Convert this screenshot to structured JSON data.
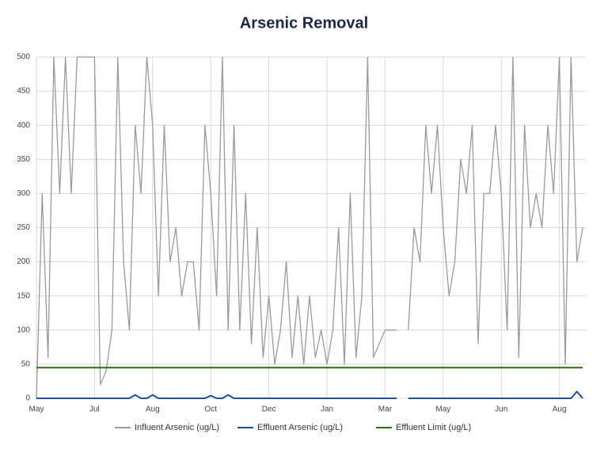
{
  "chart_data": {
    "type": "line",
    "title": "Arsenic Removal",
    "categories": [
      "May",
      null,
      null,
      null,
      null,
      null,
      null,
      null,
      null,
      null,
      "Jul",
      null,
      null,
      null,
      null,
      null,
      null,
      null,
      null,
      null,
      "Aug",
      null,
      null,
      null,
      null,
      null,
      null,
      null,
      null,
      null,
      "Oct",
      null,
      null,
      null,
      null,
      null,
      null,
      null,
      null,
      null,
      "Dec",
      null,
      null,
      null,
      null,
      null,
      null,
      null,
      null,
      null,
      "Jan",
      null,
      null,
      null,
      null,
      null,
      null,
      null,
      null,
      null,
      "Mar",
      null,
      null,
      null,
      null,
      null,
      null,
      null,
      null,
      null,
      "May",
      null,
      null,
      null,
      null,
      null,
      null,
      null,
      null,
      null,
      "Jun",
      null,
      null,
      null,
      null,
      null,
      null,
      null,
      null,
      null,
      "Aug",
      null,
      null,
      null,
      null
    ],
    "series": [
      {
        "name": "Influent Arsenic (ug/L)",
        "color": "#9a9a9a",
        "values": [
          0,
          300,
          60,
          500,
          300,
          500,
          300,
          500,
          500,
          500,
          500,
          20,
          40,
          100,
          500,
          200,
          100,
          400,
          300,
          500,
          400,
          150,
          400,
          200,
          250,
          150,
          200,
          200,
          100,
          400,
          300,
          150,
          500,
          100,
          400,
          100,
          300,
          80,
          250,
          60,
          150,
          50,
          100,
          200,
          60,
          150,
          50,
          150,
          60,
          100,
          50,
          100,
          250,
          50,
          300,
          60,
          150,
          500,
          60,
          80,
          100,
          100,
          100,
          null,
          100,
          250,
          200,
          400,
          300,
          400,
          250,
          150,
          200,
          350,
          300,
          400,
          80,
          300,
          300,
          400,
          300,
          100,
          500,
          60,
          400,
          250,
          300,
          250,
          400,
          300,
          500,
          50,
          500,
          200,
          250
        ]
      },
      {
        "name": "Effluent Arsenic (ug/L)",
        "color": "#1f4ea0",
        "values": [
          0,
          0,
          0,
          0,
          0,
          0,
          0,
          0,
          0,
          0,
          0,
          0,
          0,
          0,
          0,
          0,
          0,
          5,
          0,
          0,
          5,
          0,
          0,
          0,
          0,
          0,
          0,
          0,
          0,
          0,
          4,
          0,
          0,
          5,
          0,
          0,
          0,
          0,
          0,
          0,
          0,
          0,
          0,
          0,
          0,
          0,
          0,
          0,
          0,
          0,
          0,
          0,
          0,
          0,
          0,
          0,
          0,
          0,
          0,
          0,
          0,
          0,
          0,
          null,
          0,
          0,
          0,
          0,
          0,
          0,
          0,
          0,
          0,
          0,
          0,
          0,
          0,
          0,
          0,
          0,
          0,
          0,
          0,
          0,
          0,
          0,
          0,
          0,
          0,
          0,
          0,
          0,
          0,
          10,
          0
        ]
      },
      {
        "name": "Effluent Limit (ug/L)",
        "color": "#2e6b12",
        "values": [
          45,
          45,
          45,
          45,
          45,
          45,
          45,
          45,
          45,
          45,
          45,
          45,
          45,
          45,
          45,
          45,
          45,
          45,
          45,
          45,
          45,
          45,
          45,
          45,
          45,
          45,
          45,
          45,
          45,
          45,
          45,
          45,
          45,
          45,
          45,
          45,
          45,
          45,
          45,
          45,
          45,
          45,
          45,
          45,
          45,
          45,
          45,
          45,
          45,
          45,
          45,
          45,
          45,
          45,
          45,
          45,
          45,
          45,
          45,
          45,
          45,
          45,
          45,
          45,
          45,
          45,
          45,
          45,
          45,
          45,
          45,
          45,
          45,
          45,
          45,
          45,
          45,
          45,
          45,
          45,
          45,
          45,
          45,
          45,
          45,
          45,
          45,
          45,
          45,
          45,
          45,
          45,
          45,
          45,
          45
        ]
      }
    ],
    "ylim": [
      0,
      500
    ],
    "yticks": [
      0,
      50,
      100,
      150,
      200,
      250,
      300,
      350,
      400,
      450,
      500
    ],
    "grid": true,
    "legend": "bottom"
  }
}
